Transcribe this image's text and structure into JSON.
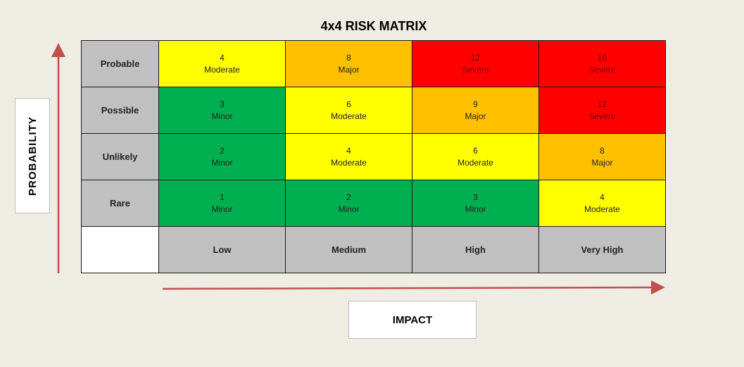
{
  "title": "4x4 RISK MATRIX",
  "y_axis_label": "PROBABILITY",
  "x_axis_label": "IMPACT",
  "row_labels": [
    "Probable",
    "Possible",
    "Unlikely",
    "Rare"
  ],
  "col_labels": [
    "Low",
    "Medium",
    "High",
    "Very High"
  ],
  "colors": {
    "Minor": "#00b050",
    "Moderate": "#ffff00",
    "Major": "#ffc000",
    "Severe": "#ff0000",
    "arrow": "#c0504d"
  },
  "rows": [
    [
      {
        "score": "4",
        "level": "Moderate"
      },
      {
        "score": "8",
        "level": "Major"
      },
      {
        "score": "12",
        "level": "Severe"
      },
      {
        "score": "16",
        "level": "Severe"
      }
    ],
    [
      {
        "score": "3",
        "level": "Minor"
      },
      {
        "score": "6",
        "level": "Moderate"
      },
      {
        "score": "9",
        "level": "Major"
      },
      {
        "score": "12",
        "level": "Severe"
      }
    ],
    [
      {
        "score": "2",
        "level": "Minor"
      },
      {
        "score": "4",
        "level": "Moderate"
      },
      {
        "score": "6",
        "level": "Moderate"
      },
      {
        "score": "8",
        "level": "Major"
      }
    ],
    [
      {
        "score": "1",
        "level": "Minor"
      },
      {
        "score": "2",
        "level": "Minor"
      },
      {
        "score": "3",
        "level": "Minor"
      },
      {
        "score": "4",
        "level": "Moderate"
      }
    ]
  ]
}
